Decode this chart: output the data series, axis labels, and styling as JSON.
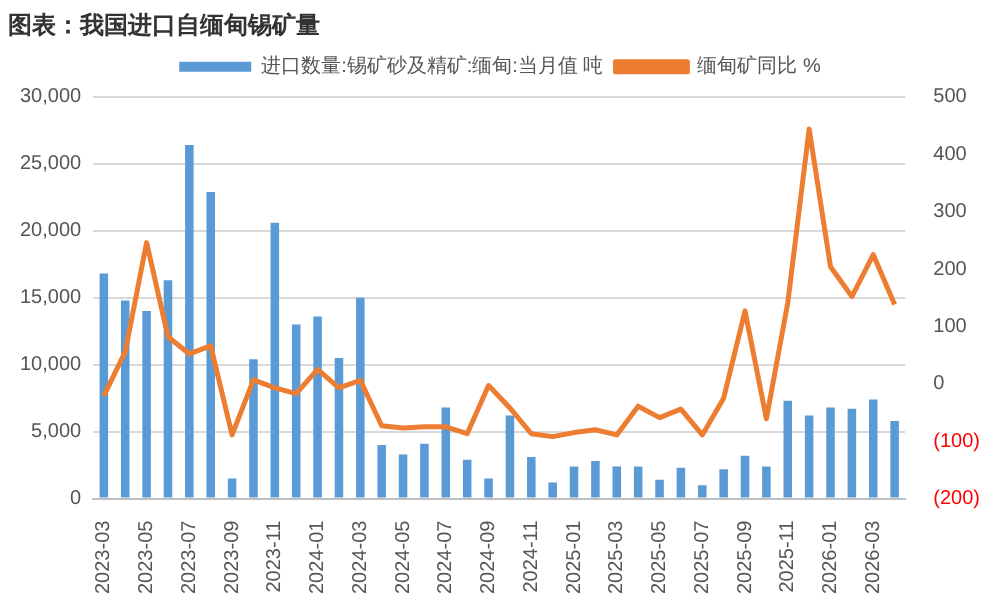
{
  "chart_data": {
    "type": "bar",
    "title": "图表：我国进口自缅甸锡矿量",
    "categories": [
      "2023-03",
      null,
      "2023-05",
      null,
      "2023-07",
      null,
      "2023-09",
      null,
      "2023-11",
      null,
      "2024-01",
      null,
      "2024-03",
      null,
      "2024-05",
      null,
      "2024-07",
      null,
      "2024-09",
      null,
      "2024-11",
      null,
      "2025-01",
      null,
      "2025-03",
      null,
      "2025-05",
      null,
      "2025-07",
      null,
      "2025-09",
      null,
      "2025-11",
      null,
      "2026-01",
      null,
      "2026-03",
      null
    ],
    "series": [
      {
        "name": "进口数量:锡矿砂及精矿:缅甸:当月值 吨",
        "color": "#5b9bd5",
        "values": [
          16800,
          14800,
          14000,
          16300,
          26400,
          22900,
          1500,
          10400,
          20600,
          13000,
          13600,
          10500,
          15000,
          4000,
          3300,
          4100,
          6800,
          2900,
          1500,
          6200,
          3100,
          1200,
          2400,
          2800,
          2400,
          2400,
          1400,
          2300,
          1000,
          2200,
          3200,
          2400,
          7300,
          6200,
          6800,
          6700,
          7400,
          5800
        ]
      },
      {
        "name": "缅甸矿同比 %",
        "type": "line",
        "axis": "y2",
        "color": "#ed7d31",
        "values": [
          -21,
          56,
          246,
          82,
          52,
          66,
          -89,
          7,
          -7,
          -17,
          25,
          -7,
          6,
          -73,
          -77,
          -75,
          -75,
          -87,
          -3,
          -42,
          -87,
          -92,
          -85,
          -80,
          -89,
          -39,
          -59,
          -44,
          -89,
          -25,
          127,
          -61,
          141,
          444,
          204,
          152,
          225,
          138
        ]
      }
    ],
    "ylim": [
      0,
      30000
    ],
    "yticks": [
      {
        "value": 0,
        "label": "0"
      },
      {
        "value": 5000,
        "label": "5,000"
      },
      {
        "value": 10000,
        "label": "10,000"
      },
      {
        "value": 15000,
        "label": "15,000"
      },
      {
        "value": 20000,
        "label": "20,000"
      },
      {
        "value": 25000,
        "label": "25,000"
      },
      {
        "value": 30000,
        "label": "30,000"
      }
    ],
    "y2lim": [
      -200,
      500
    ],
    "y2ticks": [
      {
        "value": -200,
        "label": "(200)"
      },
      {
        "value": -100,
        "label": "(100)"
      },
      0,
      100,
      200,
      300,
      400,
      500
    ],
    "grid": "y",
    "legend": "top",
    "marker": "none",
    "line_style": "solid"
  }
}
